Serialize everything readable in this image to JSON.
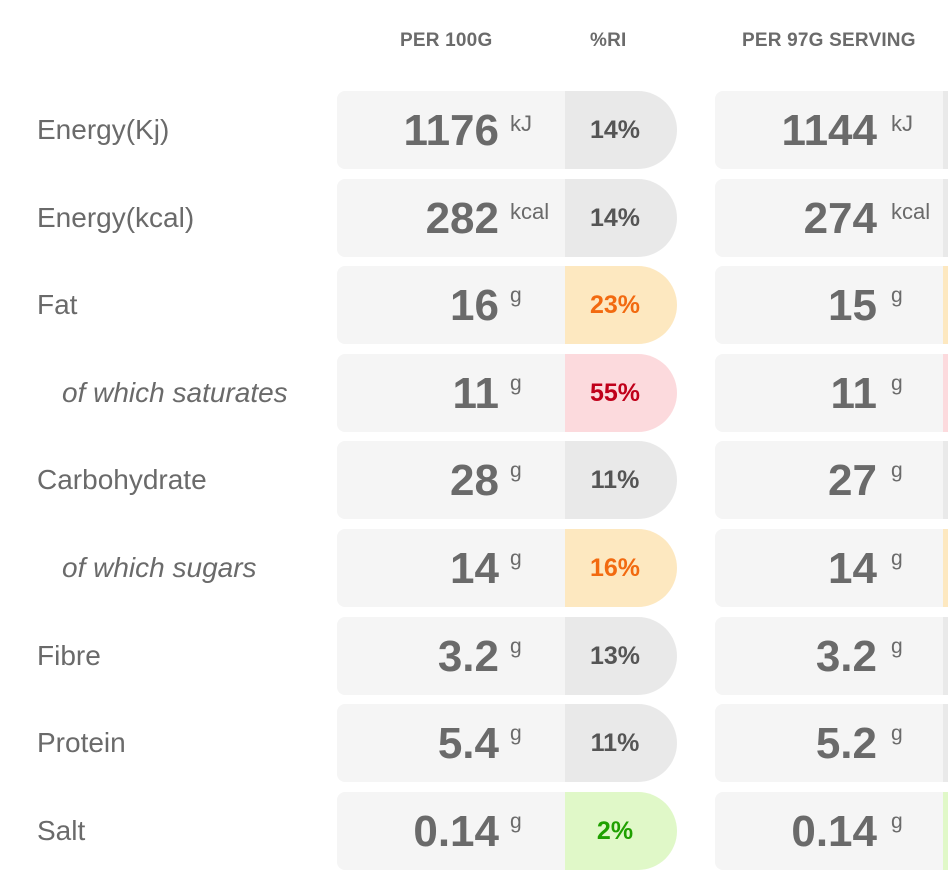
{
  "headers": {
    "per_100g": "PER 100G",
    "ri": "%RI",
    "per_serving": "PER 97G SERVING"
  },
  "rows": [
    {
      "label": "Energy(Kj)",
      "sub": false,
      "value_100g": "1176",
      "unit": "kJ",
      "ri": "14%",
      "level": "neutral",
      "value_serving": "1144"
    },
    {
      "label": "Energy(kcal)",
      "sub": false,
      "value_100g": "282",
      "unit": "kcal",
      "ri": "14%",
      "level": "neutral",
      "value_serving": "274"
    },
    {
      "label": "Fat",
      "sub": false,
      "value_100g": "16",
      "unit": "g",
      "ri": "23%",
      "level": "medium",
      "value_serving": "15"
    },
    {
      "label": "of which saturates",
      "sub": true,
      "value_100g": "11",
      "unit": "g",
      "ri": "55%",
      "level": "high",
      "value_serving": "11"
    },
    {
      "label": "Carbohydrate",
      "sub": false,
      "value_100g": "28",
      "unit": "g",
      "ri": "11%",
      "level": "neutral",
      "value_serving": "27"
    },
    {
      "label": "of which sugars",
      "sub": true,
      "value_100g": "14",
      "unit": "g",
      "ri": "16%",
      "level": "medium",
      "value_serving": "14"
    },
    {
      "label": "Fibre",
      "sub": false,
      "value_100g": "3.2",
      "unit": "g",
      "ri": "13%",
      "level": "neutral",
      "value_serving": "3.2"
    },
    {
      "label": "Protein",
      "sub": false,
      "value_100g": "5.4",
      "unit": "g",
      "ri": "11%",
      "level": "neutral",
      "value_serving": "5.2"
    },
    {
      "label": "Salt",
      "sub": false,
      "value_100g": "0.14",
      "unit": "g",
      "ri": "2%",
      "level": "low",
      "value_serving": "0.14"
    }
  ],
  "colors": {
    "neutral": "#e9e9e9",
    "medium": "#fde8c0",
    "high": "#fcdadd",
    "low": "#e0f8c8"
  }
}
